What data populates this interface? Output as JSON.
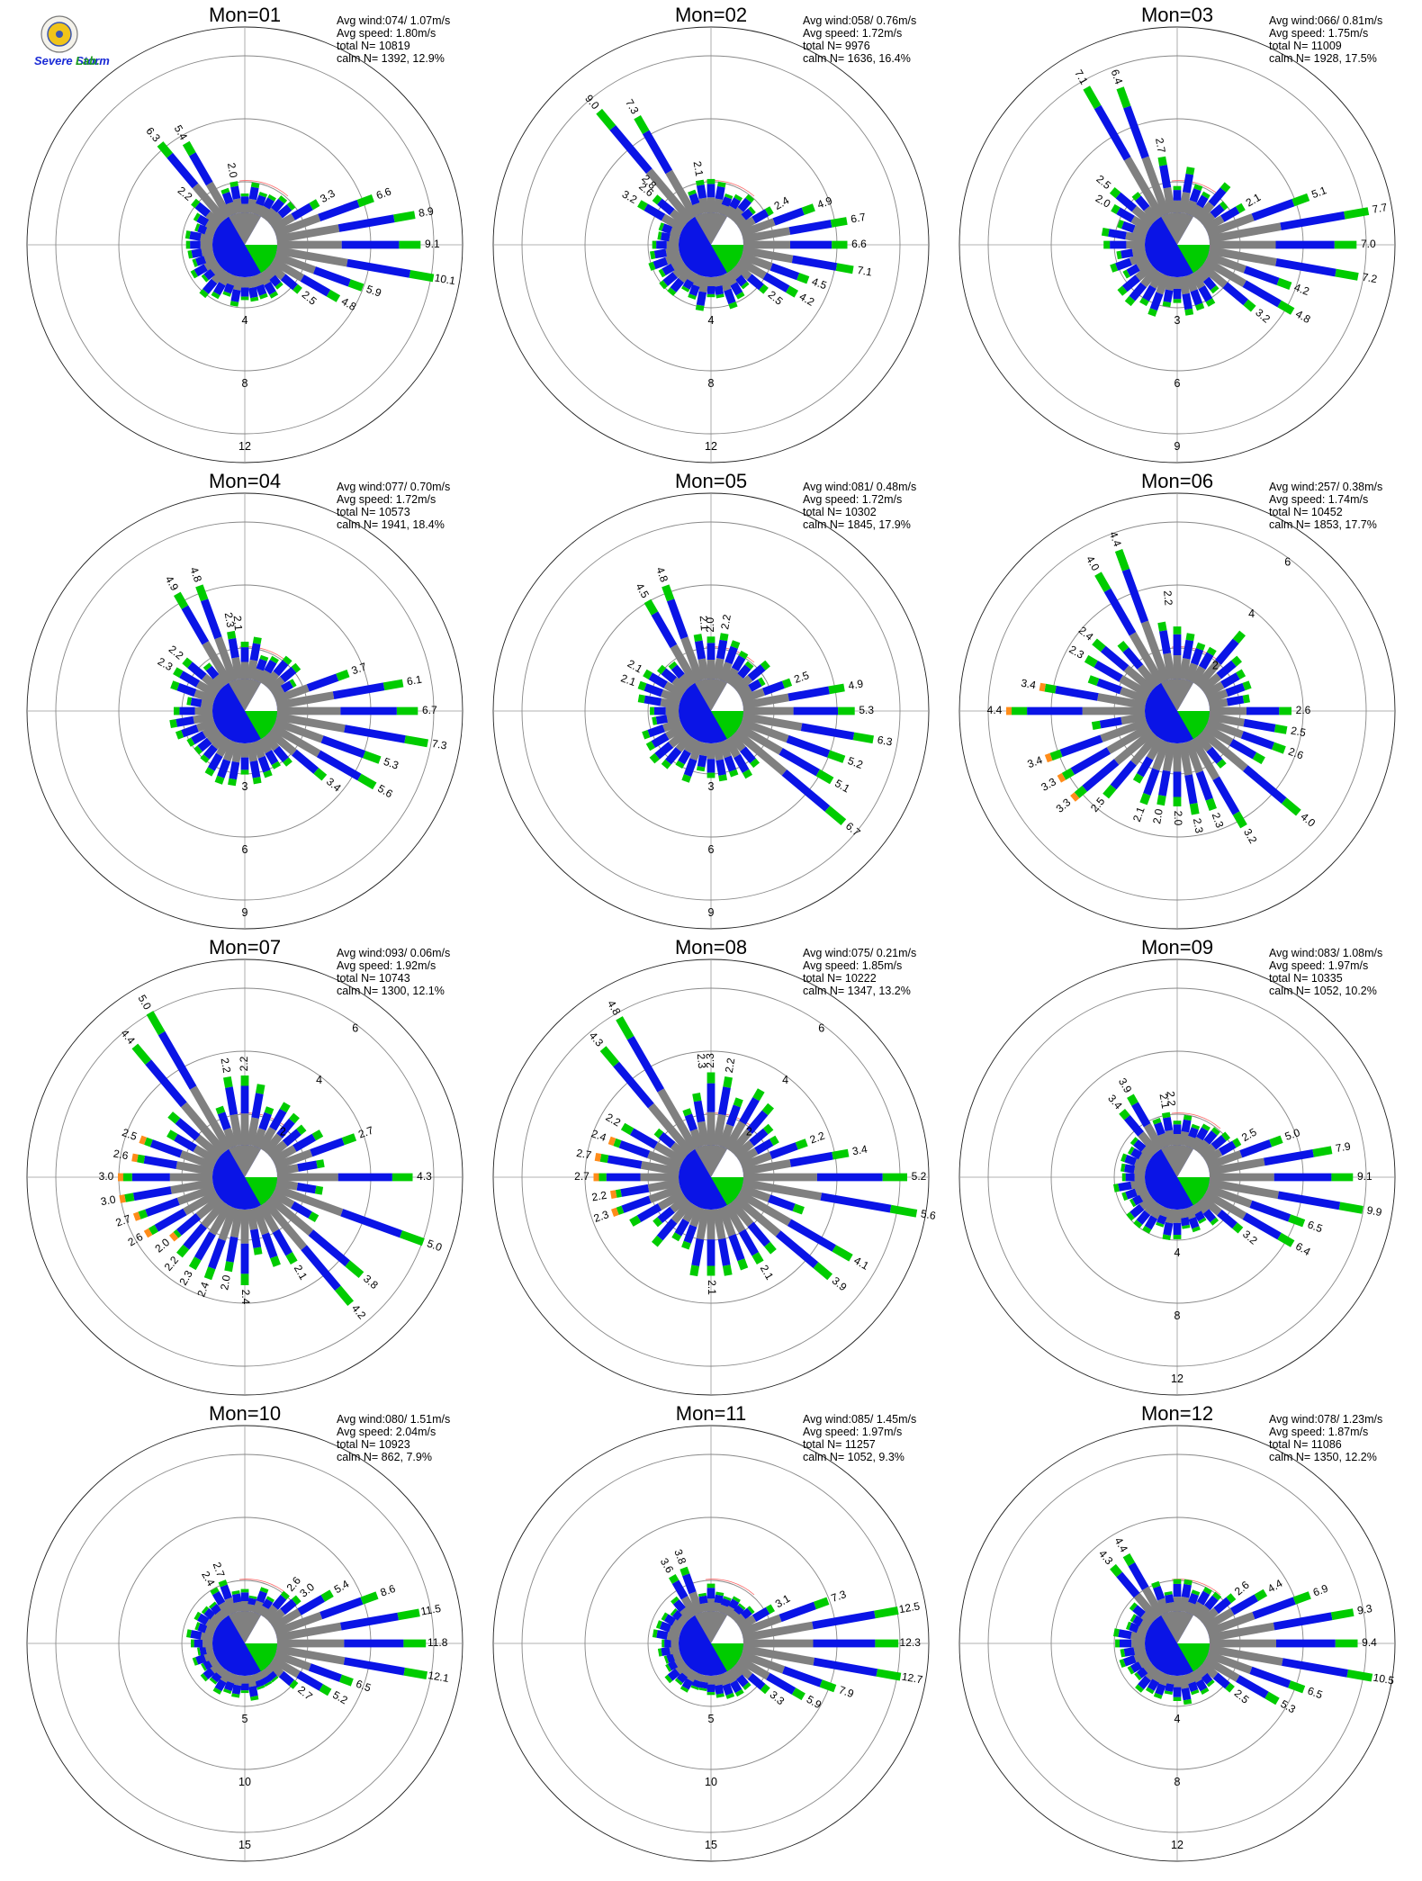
{
  "logo": {
    "text_main": "Severe Storm",
    "text_lab": "Lab."
  },
  "colors": {
    "grey": "#808080",
    "blue": "#0a14e6",
    "green": "#00cc00",
    "orange": "#ff8c1a",
    "axis": "#999999",
    "ring": "#888888",
    "ring_red": "#ff6666",
    "calm_white": "#ffffff"
  },
  "chart_data": [
    {
      "type": "wind-rose",
      "title": "Mon=01",
      "stats": [
        "Avg wind:074/ 1.07m/s",
        "Avg speed: 1.80m/s",
        "total N=      10819",
        "calm N=   1392,  12.9%"
      ],
      "calm_pct": 12.9,
      "calm_angle_deg": 74,
      "rings": [
        4,
        8,
        12
      ],
      "bars": [
        [
          90,
          9.1
        ],
        [
          100,
          10.1
        ],
        [
          80,
          8.9
        ],
        [
          70,
          6.6
        ],
        [
          60,
          3.3
        ],
        [
          110,
          5.9
        ],
        [
          120,
          4.8
        ],
        [
          130,
          2.5
        ],
        [
          320,
          6.3
        ],
        [
          330,
          5.4
        ],
        [
          310,
          2.2
        ],
        [
          350,
          2.0
        ]
      ]
    },
    {
      "type": "wind-rose",
      "title": "Mon=02",
      "stats": [
        "Avg wind:058/ 0.76m/s",
        "Avg speed: 1.72m/s",
        "total N=       9976",
        "calm N=   1636,  16.4%"
      ],
      "calm_pct": 16.4,
      "calm_angle_deg": 58,
      "rings": [
        4,
        8,
        12
      ],
      "bars": [
        [
          60,
          2.4
        ],
        [
          70,
          4.9
        ],
        [
          80,
          6.7
        ],
        [
          90,
          6.6
        ],
        [
          100,
          7.1
        ],
        [
          110,
          4.5
        ],
        [
          120,
          4.2
        ],
        [
          130,
          2.5
        ],
        [
          320,
          9.0
        ],
        [
          330,
          7.3
        ],
        [
          300,
          3.2
        ],
        [
          310,
          2.6
        ],
        [
          315,
          2.8
        ],
        [
          350,
          2.1
        ]
      ]
    },
    {
      "type": "wind-rose",
      "title": "Mon=03",
      "stats": [
        "Avg wind:066/ 0.81m/s",
        "Avg speed: 1.75m/s",
        "total N=      11009",
        "calm N=   1928,  17.5%"
      ],
      "calm_pct": 17.5,
      "calm_angle_deg": 66,
      "rings": [
        3,
        6,
        9
      ],
      "bars": [
        [
          60,
          2.1
        ],
        [
          70,
          5.1
        ],
        [
          80,
          7.7
        ],
        [
          90,
          7.0
        ],
        [
          100,
          7.2
        ],
        [
          110,
          4.2
        ],
        [
          120,
          4.8
        ],
        [
          130,
          3.2
        ],
        [
          330,
          7.1
        ],
        [
          340,
          6.4
        ],
        [
          300,
          2.0
        ],
        [
          310,
          2.5
        ],
        [
          350,
          2.7
        ]
      ]
    },
    {
      "type": "wind-rose",
      "title": "Mon=04",
      "stats": [
        "Avg wind:077/ 0.70m/s",
        "Avg speed: 1.72m/s",
        "total N=      10573",
        "calm N=   1941,  18.4%"
      ],
      "calm_pct": 18.4,
      "calm_angle_deg": 77,
      "rings": [
        3,
        6,
        9
      ],
      "bars": [
        [
          70,
          3.7
        ],
        [
          80,
          6.1
        ],
        [
          90,
          6.7
        ],
        [
          100,
          7.3
        ],
        [
          110,
          5.3
        ],
        [
          120,
          5.6
        ],
        [
          130,
          3.4
        ],
        [
          330,
          4.9
        ],
        [
          340,
          4.8
        ],
        [
          300,
          2.3
        ],
        [
          310,
          2.2
        ],
        [
          350,
          2.3
        ],
        [
          355,
          2.1
        ]
      ]
    },
    {
      "type": "wind-rose",
      "title": "Mon=05",
      "stats": [
        "Avg wind:081/ 0.48m/s",
        "Avg speed: 1.72m/s",
        "total N=      10302",
        "calm N=   1845,  17.9%"
      ],
      "calm_pct": 17.9,
      "calm_angle_deg": 81,
      "rings": [
        3,
        6,
        9
      ],
      "bars": [
        [
          70,
          2.5
        ],
        [
          80,
          4.9
        ],
        [
          90,
          5.3
        ],
        [
          100,
          6.3
        ],
        [
          110,
          5.2
        ],
        [
          120,
          5.1
        ],
        [
          130,
          6.7
        ],
        [
          330,
          4.5
        ],
        [
          340,
          4.8
        ],
        [
          290,
          2.1
        ],
        [
          300,
          2.1
        ],
        [
          355,
          2.1
        ],
        [
          0,
          2.0
        ],
        [
          10,
          2.2
        ]
      ]
    },
    {
      "type": "wind-rose",
      "title": "Mon=06",
      "stats": [
        "Avg wind:257/ 0.38m/s",
        "Avg speed: 1.74m/s",
        "total N=      10452",
        "calm N=   1853,  17.7%"
      ],
      "calm_pct": 17.7,
      "calm_angle_deg": 257,
      "rings": [
        2,
        4,
        6
      ],
      "bars": [
        [
          90,
          2.6
        ],
        [
          100,
          2.5
        ],
        [
          110,
          2.6
        ],
        [
          130,
          4.0
        ],
        [
          150,
          3.2
        ],
        [
          160,
          2.3
        ],
        [
          170,
          2.3
        ],
        [
          180,
          2.0
        ],
        [
          190,
          2.0
        ],
        [
          200,
          2.1
        ],
        [
          220,
          2.5
        ],
        [
          230,
          3.3
        ],
        [
          240,
          3.3
        ],
        [
          250,
          3.4
        ],
        [
          270,
          4.4
        ],
        [
          280,
          3.4
        ],
        [
          300,
          2.3
        ],
        [
          310,
          2.4
        ],
        [
          330,
          4.0
        ],
        [
          340,
          4.4
        ],
        [
          355,
          2.2
        ]
      ]
    },
    {
      "type": "wind-rose",
      "title": "Mon=07",
      "stats": [
        "Avg wind:093/ 0.06m/s",
        "Avg speed: 1.92m/s",
        "total N=      10743",
        "calm N=   1300,  12.1%"
      ],
      "calm_pct": 12.1,
      "calm_angle_deg": 93,
      "rings": [
        2,
        4,
        6
      ],
      "bars": [
        [
          70,
          2.7
        ],
        [
          90,
          4.3
        ],
        [
          110,
          5.0
        ],
        [
          130,
          3.8
        ],
        [
          140,
          4.2
        ],
        [
          150,
          2.1
        ],
        [
          180,
          2.4
        ],
        [
          190,
          2.0
        ],
        [
          200,
          2.4
        ],
        [
          210,
          2.3
        ],
        [
          220,
          2.2
        ],
        [
          230,
          2.0
        ],
        [
          240,
          2.6
        ],
        [
          250,
          2.7
        ],
        [
          260,
          3.0
        ],
        [
          270,
          3.0
        ],
        [
          280,
          2.6
        ],
        [
          290,
          2.5
        ],
        [
          320,
          4.4
        ],
        [
          330,
          5.0
        ],
        [
          350,
          2.2
        ],
        [
          0,
          2.2
        ]
      ]
    },
    {
      "type": "wind-rose",
      "title": "Mon=08",
      "stats": [
        "Avg wind:075/ 0.21m/s",
        "Avg speed: 1.85m/s",
        "total N=      10222",
        "calm N=   1347,  13.2%"
      ],
      "calm_pct": 13.2,
      "calm_angle_deg": 75,
      "rings": [
        2,
        4,
        6
      ],
      "bars": [
        [
          70,
          2.2
        ],
        [
          80,
          3.4
        ],
        [
          90,
          5.2
        ],
        [
          100,
          5.6
        ],
        [
          120,
          4.1
        ],
        [
          130,
          3.9
        ],
        [
          150,
          2.1
        ],
        [
          180,
          2.1
        ],
        [
          250,
          2.3
        ],
        [
          260,
          2.2
        ],
        [
          270,
          2.7
        ],
        [
          280,
          2.7
        ],
        [
          290,
          2.4
        ],
        [
          300,
          2.2
        ],
        [
          320,
          4.3
        ],
        [
          330,
          4.8
        ],
        [
          355,
          2.3
        ],
        [
          0,
          2.3
        ],
        [
          10,
          2.2
        ]
      ]
    },
    {
      "type": "wind-rose",
      "title": "Mon=09",
      "stats": [
        "Avg wind:083/ 1.08m/s",
        "Avg speed: 1.97m/s",
        "total N=      10335",
        "calm N=   1052,  10.2%"
      ],
      "calm_pct": 10.2,
      "calm_angle_deg": 83,
      "rings": [
        4,
        8,
        12
      ],
      "bars": [
        [
          60,
          2.5
        ],
        [
          70,
          5.0
        ],
        [
          80,
          7.9
        ],
        [
          90,
          9.1
        ],
        [
          100,
          9.9
        ],
        [
          110,
          6.5
        ],
        [
          120,
          6.4
        ],
        [
          130,
          3.2
        ],
        [
          320,
          3.4
        ],
        [
          330,
          3.9
        ],
        [
          350,
          2.1
        ],
        [
          355,
          2.2
        ]
      ]
    },
    {
      "type": "wind-rose",
      "title": "Mon=10",
      "stats": [
        "Avg wind:080/ 1.51m/s",
        "Avg speed: 2.04m/s",
        "total N=      10923",
        "calm N=    862,   7.9%"
      ],
      "calm_pct": 7.9,
      "calm_angle_deg": 80,
      "rings": [
        5,
        10,
        15
      ],
      "bars": [
        [
          40,
          2.6
        ],
        [
          50,
          3.0
        ],
        [
          60,
          5.4
        ],
        [
          70,
          8.6
        ],
        [
          80,
          11.5
        ],
        [
          90,
          11.8
        ],
        [
          100,
          12.1
        ],
        [
          110,
          6.5
        ],
        [
          120,
          5.2
        ],
        [
          130,
          2.7
        ],
        [
          330,
          2.4
        ],
        [
          340,
          2.7
        ]
      ]
    },
    {
      "type": "wind-rose",
      "title": "Mon=11",
      "stats": [
        "Avg wind:085/ 1.45m/s",
        "Avg speed: 1.97m/s",
        "total N=      11257",
        "calm N=   1052,   9.3%"
      ],
      "calm_pct": 9.3,
      "calm_angle_deg": 85,
      "rings": [
        5,
        10,
        15
      ],
      "bars": [
        [
          60,
          3.1
        ],
        [
          70,
          7.3
        ],
        [
          80,
          12.5
        ],
        [
          90,
          12.3
        ],
        [
          100,
          12.7
        ],
        [
          110,
          7.9
        ],
        [
          120,
          5.9
        ],
        [
          130,
          3.3
        ],
        [
          330,
          3.6
        ],
        [
          340,
          3.8
        ]
      ]
    },
    {
      "type": "wind-rose",
      "title": "Mon=12",
      "stats": [
        "Avg wind:078/ 1.23m/s",
        "Avg speed: 1.87m/s",
        "total N=      11086",
        "calm N=   1350,  12.2%"
      ],
      "calm_pct": 12.2,
      "calm_angle_deg": 78,
      "rings": [
        4,
        8,
        12
      ],
      "bars": [
        [
          50,
          2.6
        ],
        [
          60,
          4.4
        ],
        [
          70,
          6.9
        ],
        [
          80,
          9.3
        ],
        [
          90,
          9.4
        ],
        [
          100,
          10.5
        ],
        [
          110,
          6.5
        ],
        [
          120,
          5.3
        ],
        [
          130,
          2.5
        ],
        [
          320,
          4.3
        ],
        [
          330,
          4.4
        ]
      ]
    }
  ]
}
